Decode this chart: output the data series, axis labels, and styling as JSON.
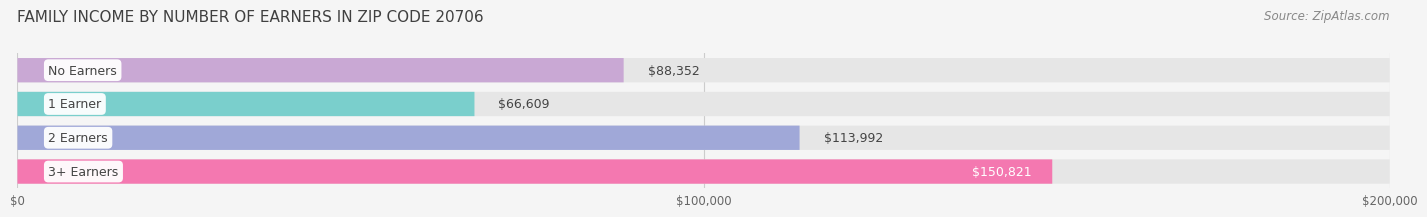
{
  "title": "FAMILY INCOME BY NUMBER OF EARNERS IN ZIP CODE 20706",
  "source": "Source: ZipAtlas.com",
  "categories": [
    "No Earners",
    "1 Earner",
    "2 Earners",
    "3+ Earners"
  ],
  "values": [
    88352,
    66609,
    113992,
    150821
  ],
  "bar_colors": [
    "#c9a8d4",
    "#7acfcc",
    "#a0a8d8",
    "#f478b0"
  ],
  "value_labels": [
    "$88,352",
    "$66,609",
    "$113,992",
    "$150,821"
  ],
  "value_inside": [
    false,
    false,
    false,
    true
  ],
  "xmax": 200000,
  "xlim_max": 200000,
  "xtick_labels": [
    "$0",
    "$100,000",
    "$200,000"
  ],
  "xtick_vals": [
    0,
    100000,
    200000
  ],
  "title_fontsize": 11,
  "source_fontsize": 8.5,
  "label_fontsize": 9,
  "value_fontsize": 9,
  "bg_color": "#f5f5f5",
  "bar_bg_color": "#e6e6e6",
  "label_bg_color": "#ffffff"
}
